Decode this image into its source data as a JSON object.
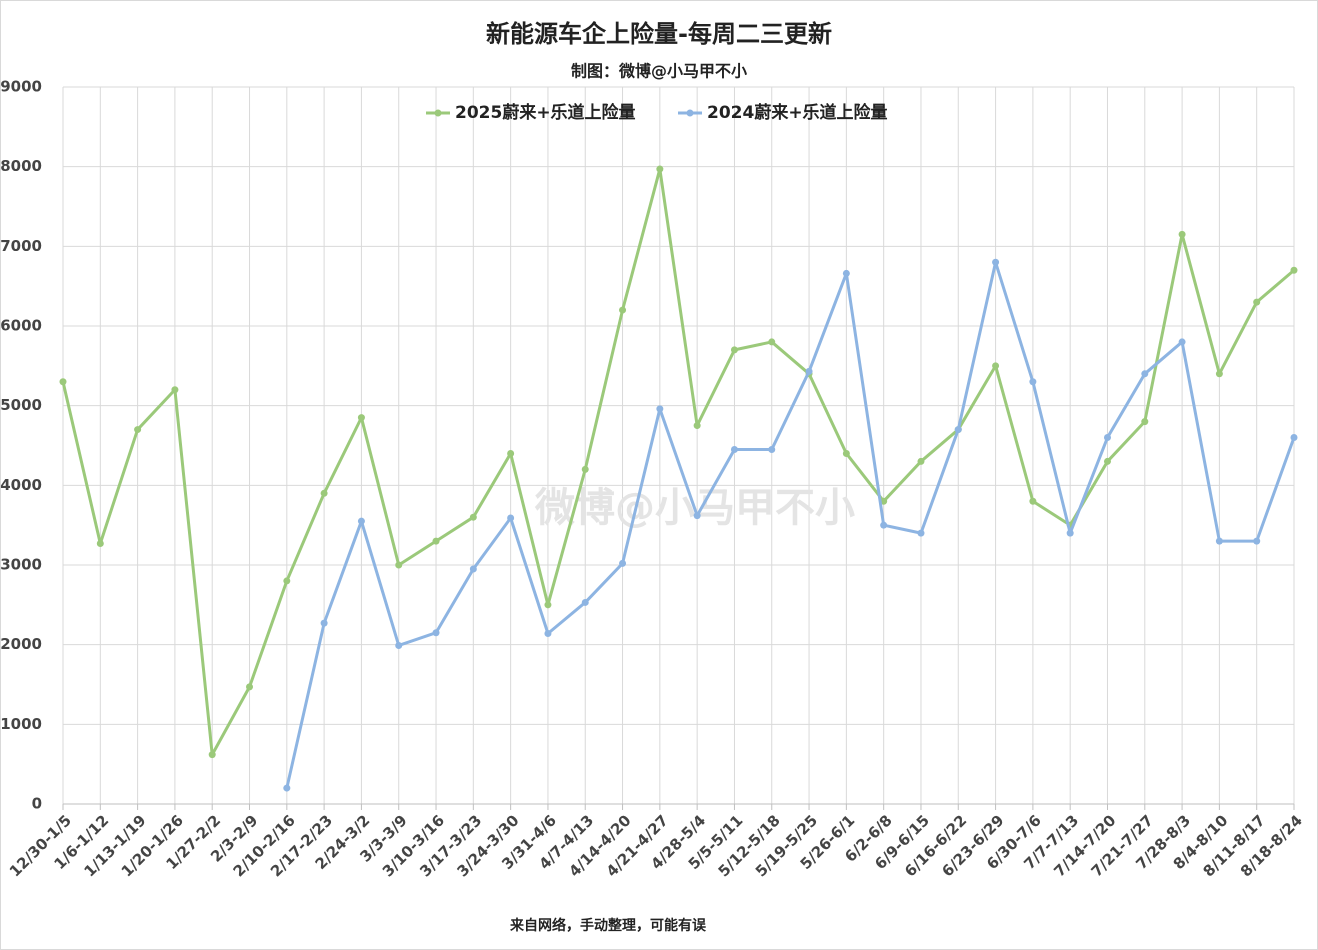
{
  "chart_data": {
    "type": "line",
    "title": "新能源车企上险量-每周二三更新",
    "subtitle": "制图：微博@小马甲不小",
    "watermark": "微博@小马甲不小",
    "footnote": "来自网络，手动整理，可能有误",
    "categories": [
      "12/30-1/5",
      "1/6-1/12",
      "1/13-1/19",
      "1/20-1/26",
      "1/27-2/2",
      "2/3-2/9",
      "2/10-2/16",
      "2/17-2/23",
      "2/24-3/2",
      "3/3-3/9",
      "3/10-3/16",
      "3/17-3/23",
      "3/24-3/30",
      "3/31-4/6",
      "4/7-4/13",
      "4/14-4/20",
      "4/21-4/27",
      "4/28-5/4",
      "5/5-5/11",
      "5/12-5/18",
      "5/19-5/25",
      "5/26-6/1",
      "6/2-6/8",
      "6/9-6/15",
      "6/16-6/22",
      "6/23-6/29",
      "6/30-7/6",
      "7/7-7/13",
      "7/14-7/20",
      "7/21-7/27",
      "7/28-8/3",
      "8/4-8/10",
      "8/11-8/17",
      "8/18-8/24"
    ],
    "series": [
      {
        "name": "2025蔚来+乐道上险量",
        "color": "#9bc97a",
        "values": [
          5300,
          3270,
          4700,
          5200,
          620,
          1470,
          2800,
          3900,
          4850,
          3000,
          3300,
          3600,
          4400,
          2500,
          4200,
          6200,
          7970,
          4750,
          5700,
          5800,
          5400,
          4400,
          3800,
          4300,
          4700,
          5500,
          3800,
          3500,
          4300,
          4800,
          7150,
          5400,
          6300,
          6700
        ]
      },
      {
        "name": "2024蔚来+乐道上险量",
        "color": "#8db4e2",
        "values": [
          null,
          null,
          null,
          null,
          null,
          null,
          200,
          2270,
          3550,
          1990,
          2150,
          2950,
          3590,
          2140,
          2530,
          3020,
          4960,
          3620,
          4450,
          4450,
          5430,
          6660,
          3500,
          3400,
          4700,
          6800,
          5300,
          3400,
          4600,
          5400,
          5800,
          3300,
          3300,
          4600
        ]
      }
    ],
    "ylim": [
      0,
      9000
    ],
    "yticks": [
      0,
      1000,
      2000,
      3000,
      4000,
      5000,
      6000,
      7000,
      8000,
      9000
    ],
    "grid": true,
    "legend": "top"
  }
}
